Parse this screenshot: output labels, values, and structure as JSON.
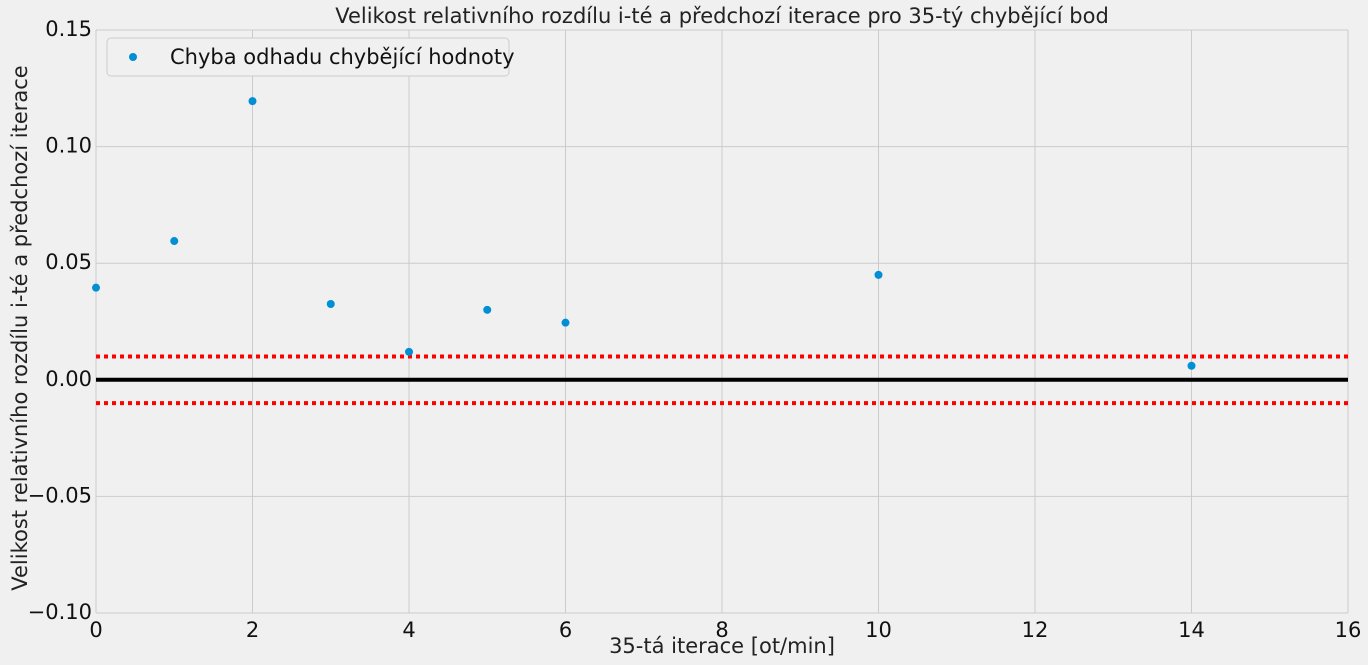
{
  "chart_data": {
    "type": "scatter",
    "title": "Velikost relativního rozdílu i-té a předchozí iterace pro 35-tý chybějící bod",
    "xlabel": "35-tá iterace [ot/min]",
    "ylabel": "Velikost relativního rozdílu i-té a předchozí iterace",
    "xlim": [
      0,
      16
    ],
    "ylim": [
      -0.1,
      0.15
    ],
    "xticks": [
      0,
      2,
      4,
      6,
      8,
      10,
      12,
      14,
      16
    ],
    "xtick_labels": [
      "0",
      "2",
      "4",
      "6",
      "8",
      "10",
      "12",
      "14",
      "16"
    ],
    "yticks": [
      -0.1,
      -0.05,
      0.0,
      0.05,
      0.1,
      0.15
    ],
    "ytick_labels": [
      "−0.10",
      "−0.05",
      "0.00",
      "0.05",
      "0.10",
      "0.15"
    ],
    "grid": true,
    "legend": {
      "placement": "top-left",
      "entries": [
        "Chyba odhadu chybějící hodnoty"
      ]
    },
    "series": [
      {
        "name": "Chyba odhadu chybějící hodnoty",
        "color": "#008fd5",
        "x": [
          0,
          1,
          2,
          3,
          4,
          5,
          6,
          10,
          14
        ],
        "y": [
          0.0395,
          0.0595,
          0.1195,
          0.0325,
          0.012,
          0.03,
          0.0245,
          0.045,
          0.006
        ]
      }
    ],
    "reference_lines": [
      {
        "y": 0.0,
        "style": "solid",
        "color": "#000000"
      },
      {
        "y": 0.01,
        "style": "dotted",
        "color": "#ff0000"
      },
      {
        "y": -0.01,
        "style": "dotted",
        "color": "#ff0000"
      }
    ]
  }
}
